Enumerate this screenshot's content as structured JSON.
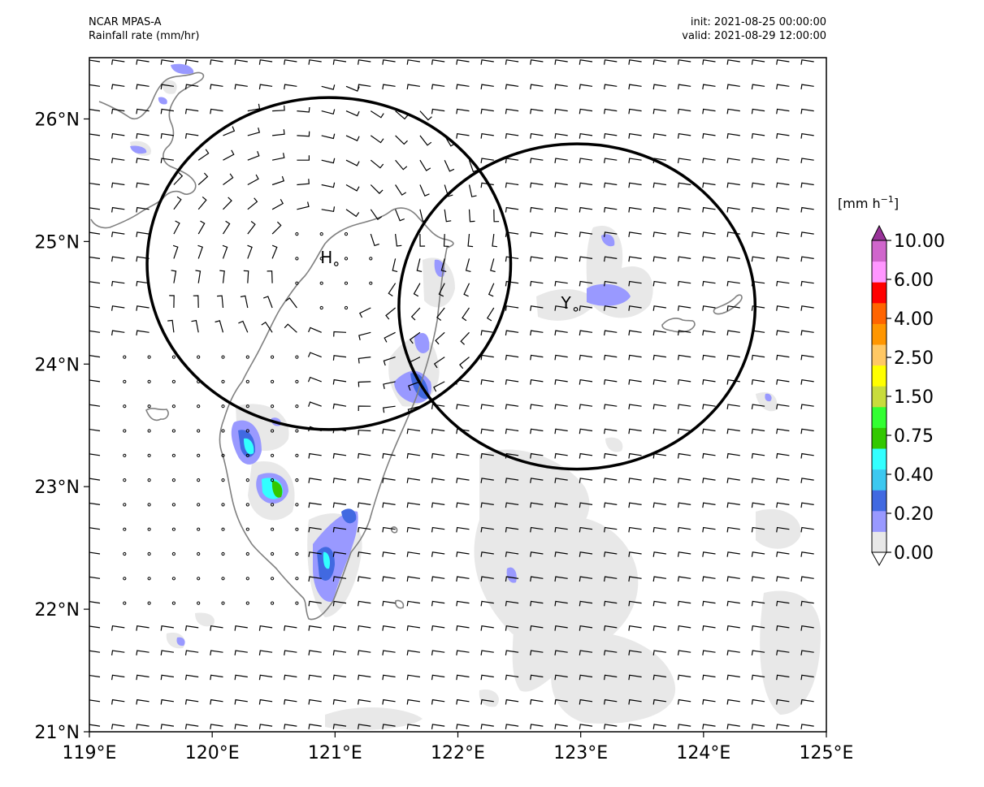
{
  "header": {
    "model": "NCAR MPAS-A",
    "variable": "Rainfall rate (mm/hr)",
    "init": "init: 2021-08-25 00:00:00",
    "valid": "valid: 2021-08-29 12:00:00"
  },
  "map": {
    "lon_range": [
      119,
      125
    ],
    "lat_range": [
      21,
      26.5
    ],
    "lon_ticks": [
      {
        "value": 119,
        "label": "119°E"
      },
      {
        "value": 120,
        "label": "120°E"
      },
      {
        "value": 121,
        "label": "121°E"
      },
      {
        "value": 122,
        "label": "122°E"
      },
      {
        "value": 123,
        "label": "123°E"
      },
      {
        "value": 124,
        "label": "124°E"
      },
      {
        "value": 125,
        "label": "125°E"
      }
    ],
    "lat_ticks": [
      {
        "value": 21,
        "label": "21°N"
      },
      {
        "value": 22,
        "label": "22°N"
      },
      {
        "value": 23,
        "label": "23°N"
      },
      {
        "value": 24,
        "label": "24°N"
      },
      {
        "value": 25,
        "label": "25°N"
      },
      {
        "value": 26,
        "label": "26°N"
      }
    ],
    "markers": [
      {
        "label": "H",
        "lon": 120.95,
        "lat": 24.87
      },
      {
        "label": "Y",
        "lon": 122.9,
        "lat": 24.5
      }
    ],
    "circles": [
      {
        "lon": 120.95,
        "lat": 24.82,
        "r_deg": 1.48
      },
      {
        "lon": 122.97,
        "lat": 24.47,
        "r_deg": 1.45
      }
    ]
  },
  "colorbar": {
    "unit_label": "[mm h",
    "unit_exp": "−1",
    "unit_close": "]",
    "levels": [
      "0.00",
      "0.20",
      "0.40",
      "0.75",
      "1.50",
      "2.50",
      "4.00",
      "6.00",
      "10.00"
    ],
    "colors": [
      "#ffffff",
      "#e8e8e8",
      "#9999ff",
      "#4169e1",
      "#3cc8f0",
      "#32ffff",
      "#32c800",
      "#32ff32",
      "#c8dc3c",
      "#ffff00",
      "#ffc864",
      "#ff9600",
      "#ff6400",
      "#ff0000",
      "#ff96ff",
      "#d066cc",
      "#993399"
    ]
  }
}
